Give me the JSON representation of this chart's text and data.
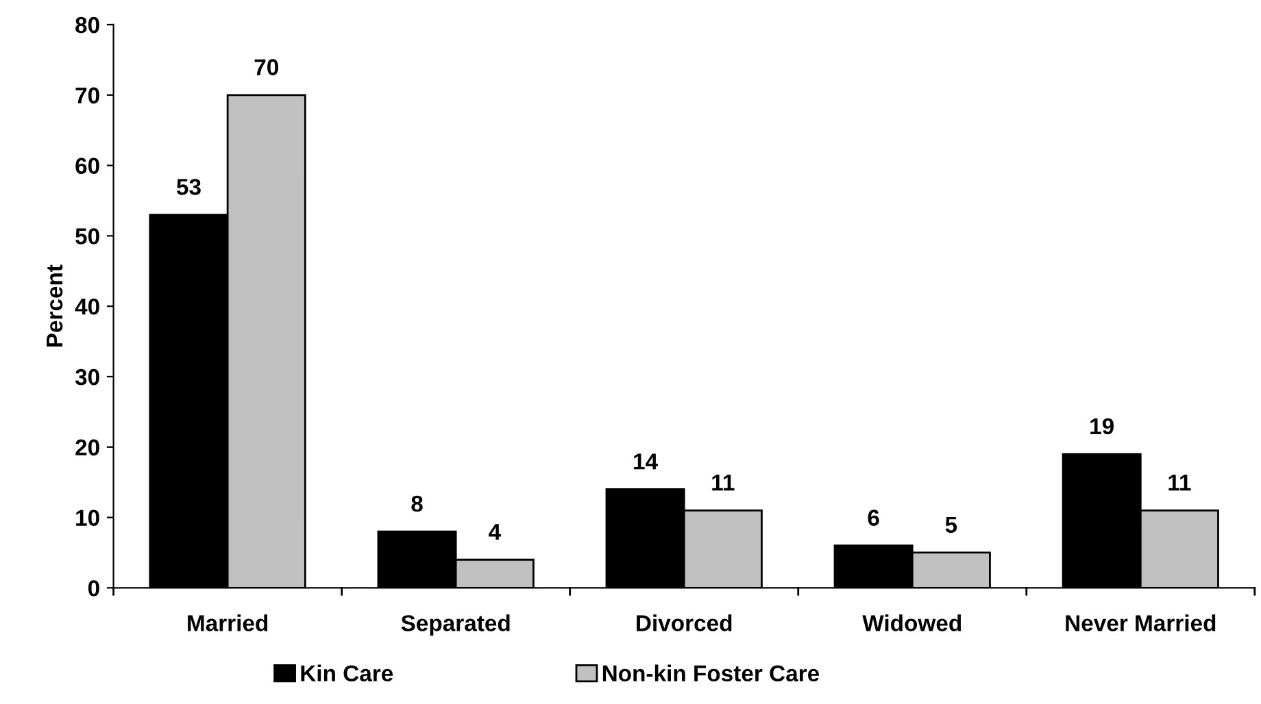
{
  "chart_data": {
    "type": "bar",
    "ylabel": "Percent",
    "categories": [
      "Married",
      "Separated",
      "Divorced",
      "Widowed",
      "Never Married"
    ],
    "series": [
      {
        "name": "Kin Care",
        "color": "#000000",
        "values": [
          53,
          8,
          14,
          6,
          19
        ]
      },
      {
        "name": "Non-kin Foster Care",
        "color": "#c0c0c0",
        "values": [
          70,
          4,
          11,
          5,
          11
        ]
      }
    ],
    "ylim": [
      0,
      80
    ],
    "yticks": [
      0,
      10,
      20,
      30,
      40,
      50,
      60,
      70,
      80
    ],
    "data_labels": true,
    "grid": false,
    "legend": "bottom"
  }
}
